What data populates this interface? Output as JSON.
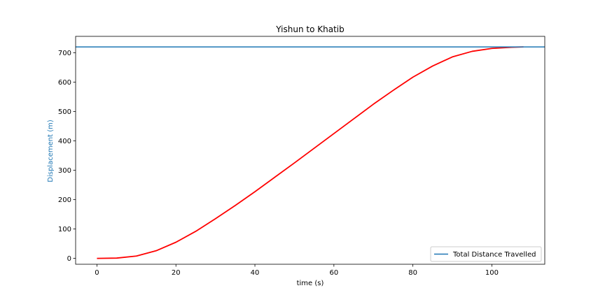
{
  "chart_data": {
    "type": "line",
    "title": "Yishun to Khatib",
    "xlabel": "time (s)",
    "ylabel": "Displacement (m)",
    "xlim": [
      -5.4,
      113.4
    ],
    "ylim": [
      -20,
      756
    ],
    "xticks": [
      0,
      20,
      40,
      60,
      80,
      100
    ],
    "yticks": [
      0,
      100,
      200,
      300,
      400,
      500,
      600,
      700
    ],
    "grid": false,
    "legend_location": "lower right",
    "colors": {
      "displacement_curve": "#ff0000",
      "total_distance_line": "#1f77b4",
      "ylabel": "#1f77b4"
    },
    "series": [
      {
        "x": [
          0,
          5,
          10,
          15,
          20,
          25,
          30,
          35,
          40,
          45,
          50,
          55,
          60,
          65,
          70,
          75,
          80,
          85,
          90,
          95,
          100,
          105,
          108
        ],
        "values": [
          0,
          1,
          8,
          26,
          55,
          92,
          135,
          180,
          227,
          276,
          325,
          375,
          425,
          475,
          525,
          572,
          617,
          655,
          686,
          705,
          715,
          719,
          720
        ]
      },
      {
        "name": "Total Distance Travelled",
        "y_constant": 720
      }
    ]
  }
}
